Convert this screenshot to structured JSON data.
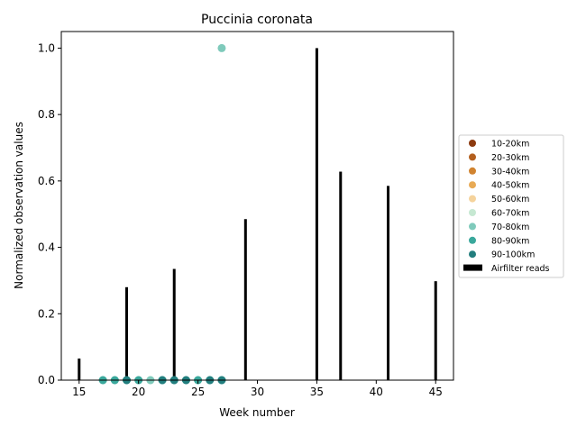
{
  "chart_data": {
    "type": "bar+scatter",
    "title": "Puccinia coronata",
    "xlabel": "Week number",
    "ylabel": "Normalized observation values",
    "xlim": [
      13.5,
      46.5
    ],
    "ylim": [
      0,
      1.05
    ],
    "xticks": [
      15,
      20,
      25,
      30,
      35,
      40,
      45
    ],
    "yticks": [
      0.0,
      0.2,
      0.4,
      0.6,
      0.8,
      1.0
    ],
    "xtick_labels": [
      "15",
      "20",
      "25",
      "30",
      "35",
      "40",
      "45"
    ],
    "ytick_labels": [
      "0.0",
      "0.2",
      "0.4",
      "0.6",
      "0.8",
      "1.0"
    ],
    "grid": false,
    "legend_position": "right-center",
    "bars": {
      "name": "Airfilter reads",
      "color": "#000000",
      "x": [
        15,
        19,
        23,
        29,
        35,
        37,
        41,
        45
      ],
      "values": [
        0.065,
        0.28,
        0.335,
        0.485,
        1.0,
        0.628,
        0.585,
        0.298
      ]
    },
    "series": [
      {
        "name": "10-20km",
        "color": "#8c3a0f",
        "x": [],
        "y": []
      },
      {
        "name": "20-30km",
        "color": "#b35f1e",
        "x": [],
        "y": []
      },
      {
        "name": "30-40km",
        "color": "#d18430",
        "x": [],
        "y": []
      },
      {
        "name": "40-50km",
        "color": "#e8aa55",
        "x": [],
        "y": []
      },
      {
        "name": "50-60km",
        "color": "#f5d39c",
        "x": [],
        "y": []
      },
      {
        "name": "60-70km",
        "color": "#c6e8d2",
        "x": [
          21
        ],
        "y": [
          0
        ]
      },
      {
        "name": "70-80km",
        "color": "#7fcabb",
        "x": [
          17,
          18,
          20,
          21,
          22,
          25,
          27
        ],
        "y": [
          0,
          0,
          0,
          0,
          0,
          0,
          1.0
        ]
      },
      {
        "name": "80-90km",
        "color": "#3aa89c",
        "x": [
          17,
          18,
          19,
          20,
          22,
          23,
          24,
          25,
          26,
          27
        ],
        "y": [
          0,
          0,
          0,
          0,
          0,
          0,
          0,
          0,
          0,
          0
        ]
      },
      {
        "name": "90-100km",
        "color": "#227e7e",
        "x": [
          19,
          22,
          23,
          24,
          26,
          27
        ],
        "y": [
          0,
          0,
          0,
          0,
          0,
          0
        ]
      }
    ]
  }
}
